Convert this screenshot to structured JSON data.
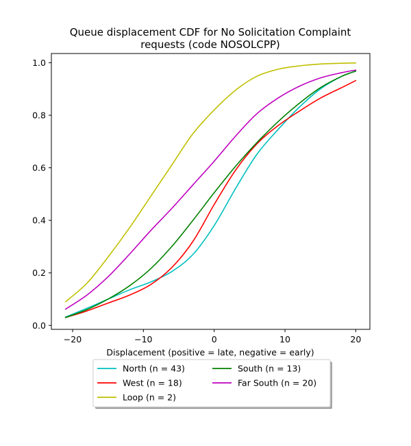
{
  "chart_data": {
    "type": "line",
    "title_lines": [
      "Queue displacement CDF for No Solicitation Complaint",
      "requests (code NOSOLCPP)"
    ],
    "xlabel": "Displacement (positive = late, negative = early)",
    "ylabel": "",
    "xlim": [
      -23,
      22
    ],
    "ylim": [
      -0.015,
      1.035
    ],
    "xticks": [
      -20,
      -10,
      0,
      10,
      20
    ],
    "xtick_labels": [
      "−20",
      "−10",
      "0",
      "10",
      "20"
    ],
    "yticks": [
      0.0,
      0.2,
      0.4,
      0.6,
      0.8,
      1.0
    ],
    "ytick_labels": [
      "0.0",
      "0.2",
      "0.4",
      "0.6",
      "0.8",
      "1.0"
    ],
    "grid": false,
    "legend_position": "below plot, centered",
    "x": [
      -21,
      -18,
      -15,
      -12,
      -9,
      -6,
      -3,
      0,
      3,
      6,
      9,
      12,
      15,
      18,
      20
    ],
    "series": [
      {
        "name": "North (n = 43)",
        "color": "#00bfbf",
        "values": [
          0.032,
          0.065,
          0.1,
          0.135,
          0.165,
          0.205,
          0.27,
          0.38,
          0.52,
          0.65,
          0.745,
          0.83,
          0.9,
          0.948,
          0.968
        ]
      },
      {
        "name": "West (n = 18)",
        "color": "#ff0000",
        "values": [
          0.03,
          0.055,
          0.085,
          0.115,
          0.155,
          0.22,
          0.32,
          0.46,
          0.59,
          0.69,
          0.76,
          0.815,
          0.865,
          0.905,
          0.932
        ]
      },
      {
        "name": "Loop (n = 2)",
        "color": "#bfbf00",
        "values": [
          0.09,
          0.16,
          0.26,
          0.37,
          0.49,
          0.61,
          0.73,
          0.82,
          0.895,
          0.948,
          0.975,
          0.988,
          0.995,
          0.998,
          0.999
        ]
      },
      {
        "name": "South (n = 13)",
        "color": "#008000",
        "values": [
          0.03,
          0.06,
          0.1,
          0.15,
          0.215,
          0.3,
          0.4,
          0.505,
          0.605,
          0.695,
          0.775,
          0.845,
          0.905,
          0.948,
          0.968
        ]
      },
      {
        "name": "Far South (n = 20)",
        "color": "#bf00bf",
        "values": [
          0.062,
          0.115,
          0.185,
          0.27,
          0.36,
          0.445,
          0.535,
          0.625,
          0.72,
          0.805,
          0.865,
          0.91,
          0.942,
          0.962,
          0.972
        ]
      }
    ]
  }
}
